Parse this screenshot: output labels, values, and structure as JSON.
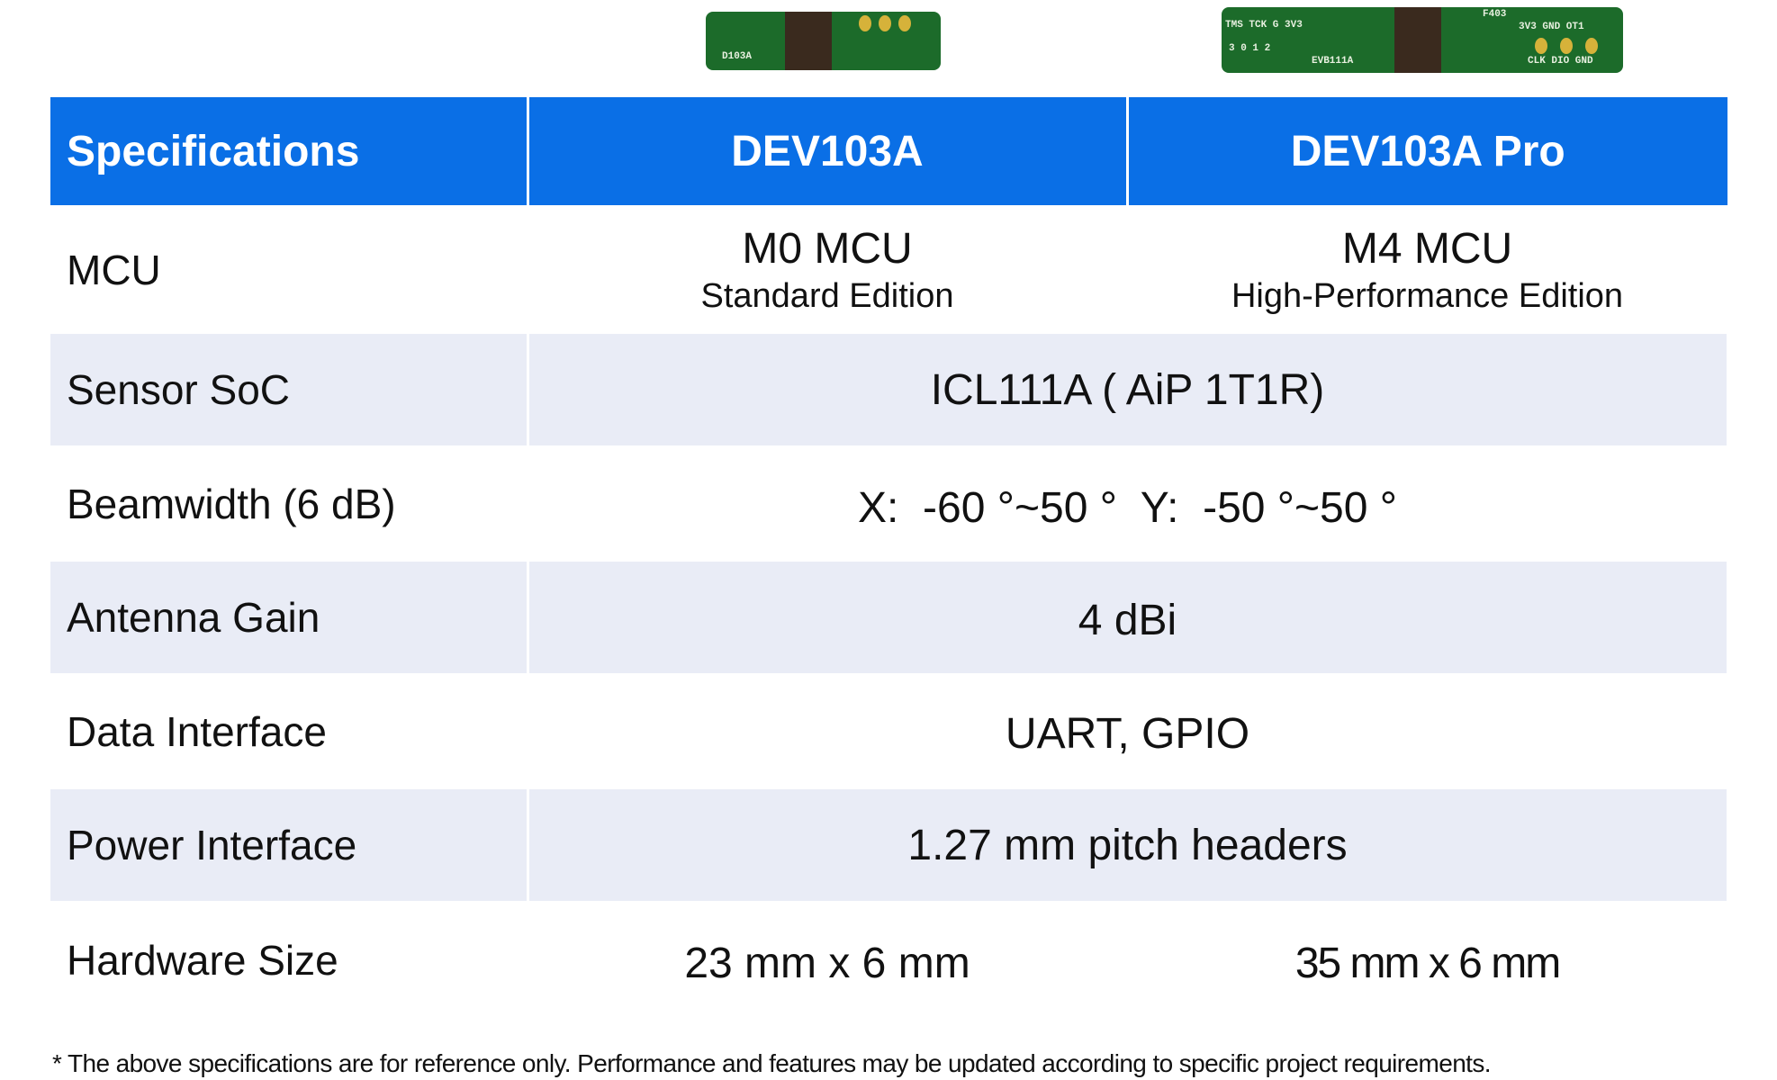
{
  "images": [
    {
      "name": "dev103a-board",
      "silk": "D103A"
    },
    {
      "name": "dev103a-pro-board",
      "silk": [
        "TMS TCK G 3V3",
        "3 0 1 2",
        "EVB111A",
        "F403",
        "3V3 GND OT1",
        "CLK DIO GND"
      ]
    }
  ],
  "table": {
    "headers": [
      "Specifications",
      "DEV103A",
      "DEV103A Pro"
    ],
    "rows": [
      {
        "label": "MCU",
        "a": "M0 MCU",
        "a_sub": "Standard Edition",
        "b": "M4 MCU",
        "b_sub": "High-Performance Edition"
      },
      {
        "label": "Sensor SoC",
        "value": "ICL111A ( AiP 1T1R)"
      },
      {
        "label": "Beamwidth (6 dB)",
        "value": "X:  -60 °~50 °  Y:  -50 °~50 °"
      },
      {
        "label": "Antenna Gain",
        "value": "4 dBi"
      },
      {
        "label": "Data Interface",
        "value": "UART, GPIO"
      },
      {
        "label": "Power Interface",
        "value": "1.27 mm pitch headers"
      },
      {
        "label": "Hardware Size",
        "a": "23 mm x 6 mm",
        "b": "35 mm x 6 mm"
      }
    ]
  },
  "footnote": "* The above specifications are for reference only. Performance and features may be updated according to specific project requirements.",
  "colors": {
    "header": "#0a6fe6",
    "alt_row": "#e9ecf6"
  }
}
